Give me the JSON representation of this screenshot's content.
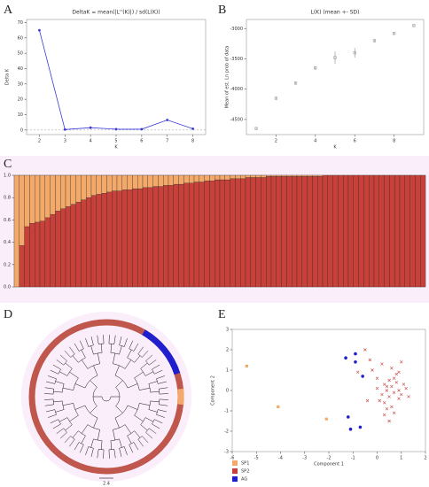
{
  "chart_data": [
    {
      "panel": "A",
      "type": "line",
      "title": "DeltaK = mean(|L''(K)|) / sd(L(K))",
      "x_label": "K",
      "y_label": "Delta K",
      "x": [
        2,
        3,
        4,
        5,
        6,
        7,
        8
      ],
      "values": [
        65,
        0.3,
        1.5,
        0.5,
        0.5,
        6.5,
        0.8
      ],
      "color": "#3b3bd6",
      "xlim": [
        1.5,
        8.5
      ],
      "xticks": [
        2,
        3,
        4,
        5,
        6,
        7,
        8
      ],
      "ylim": [
        -3,
        72
      ],
      "yticks": [
        0,
        10,
        20,
        30,
        40,
        50,
        60,
        70
      ]
    },
    {
      "panel": "B",
      "type": "errorpoints",
      "title": "L(K) (mean +- SD)",
      "x_label": "K",
      "y_label": "Mean of est. Ln prob of data",
      "x": [
        1,
        2,
        3,
        4,
        5,
        6,
        7,
        8,
        9
      ],
      "values": [
        -4650,
        -4150,
        -3900,
        -3650,
        -3480,
        -3400,
        -3200,
        -3080,
        -2950
      ],
      "errors": [
        15,
        15,
        15,
        30,
        100,
        80,
        15,
        15,
        15
      ],
      "color": "#888888",
      "xlim": [
        0.5,
        9.5
      ],
      "xticks": [
        2,
        4,
        6,
        8
      ],
      "ylim": [
        -4750,
        -2850
      ],
      "yticks": [
        -4500,
        -4000,
        -3500,
        -3000
      ]
    },
    {
      "panel": "C",
      "type": "stacked_bar",
      "ylim": [
        0,
        1
      ],
      "yticks": [
        {
          "value": 0,
          "label": "0.0"
        },
        0.2,
        0.4,
        0.6,
        0.8,
        {
          "value": 1,
          "label": "1.0"
        }
      ],
      "series": [
        {
          "color": "#c8403a",
          "values": [
            0,
            0.37,
            0.54,
            0.57,
            0.58,
            0.59,
            0.62,
            0.65,
            0.68,
            0.7,
            0.72,
            0.74,
            0.76,
            0.78,
            0.8,
            0.82,
            0.83,
            0.84,
            0.85,
            0.86,
            0.86,
            0.87,
            0.87,
            0.88,
            0.88,
            0.89,
            0.89,
            0.9,
            0.9,
            0.91,
            0.91,
            0.92,
            0.92,
            0.93,
            0.93,
            0.94,
            0.94,
            0.95,
            0.95,
            0.96,
            0.96,
            0.96,
            0.97,
            0.97,
            0.97,
            0.98,
            0.98,
            0.98,
            0.98,
            0.99,
            0.99,
            0.99,
            0.99,
            0.99,
            0.99,
            0.99,
            0.99,
            0.99,
            0.99,
            0.99,
            1,
            1,
            1,
            1,
            1,
            1,
            1,
            1,
            1,
            1,
            1,
            1,
            1,
            1,
            1,
            1,
            1,
            1,
            1,
            1
          ]
        },
        {
          "color": "#f2a96a",
          "values": [
            1,
            0.63,
            0.46,
            0.43,
            0.42,
            0.41,
            0.38,
            0.35,
            0.32,
            0.3,
            0.28,
            0.26,
            0.24,
            0.22,
            0.2,
            0.18,
            0.17,
            0.16,
            0.15,
            0.14,
            0.14,
            0.13,
            0.13,
            0.12,
            0.12,
            0.11,
            0.11,
            0.1,
            0.1,
            0.09,
            0.09,
            0.08,
            0.08,
            0.07,
            0.07,
            0.06,
            0.06,
            0.05,
            0.05,
            0.04,
            0.04,
            0.04,
            0.03,
            0.03,
            0.03,
            0.02,
            0.02,
            0.02,
            0.02,
            0.01,
            0.01,
            0.01,
            0.01,
            0.01,
            0.01,
            0.01,
            0.01,
            0.01,
            0.01,
            0.01,
            0,
            0,
            0,
            0,
            0,
            0,
            0,
            0,
            0,
            0,
            0,
            0,
            0,
            0,
            0,
            0,
            0,
            0,
            0,
            0
          ]
        }
      ]
    },
    {
      "panel": "D",
      "type": "tree",
      "scale_label": "2.4"
    },
    {
      "panel": "E",
      "type": "scatter",
      "x_label": "Component 1",
      "y_label": "Component 2",
      "xlim": [
        -6,
        2
      ],
      "xticks": [
        -6,
        -5,
        -4,
        -3,
        -2,
        -1,
        0,
        1,
        2
      ],
      "ylim": [
        -3,
        3
      ],
      "yticks": [
        -3,
        -2,
        -1,
        0,
        1,
        2,
        3
      ],
      "series": [
        {
          "name": "SP1",
          "color": "#f2a96a",
          "x": [
            -5.4,
            -4.1,
            -2.1
          ],
          "values": [
            1.2,
            -0.8,
            -1.4
          ]
        },
        {
          "name": "SP2",
          "color": "#c8403a",
          "x": [
            0.0,
            0.2,
            0.3,
            0.4,
            0.5,
            0.6,
            0.7,
            0.8,
            0.9,
            1.0,
            1.1,
            1.2,
            0.1,
            0.3,
            0.5,
            0.7,
            0.9,
            0.4,
            0.6,
            0.8,
            -0.3,
            -0.5,
            -0.2,
            0.2,
            0.6,
            1.0,
            0.3,
            0.5,
            0.7,
            -0.8,
            -0.4,
            0.0,
            1.3,
            0.9,
            0.4
          ],
          "values": [
            0.1,
            -0.2,
            0.3,
            0.0,
            -0.3,
            0.2,
            -0.1,
            0.4,
            0.0,
            -0.2,
            0.3,
            0.1,
            -0.5,
            -0.6,
            0.5,
            0.6,
            -0.4,
            -0.9,
            -0.8,
            0.8,
            1.5,
            2.0,
            1.0,
            1.3,
            1.1,
            1.4,
            -1.2,
            -1.5,
            -1.1,
            0.9,
            -0.5,
            0.6,
            -0.3,
            0.9,
            0.2
          ]
        },
        {
          "name": "AG",
          "color": "#1f1fd0",
          "x": [
            -1.3,
            -0.9,
            -0.9,
            -0.6,
            -1.2,
            -1.1,
            -0.7
          ],
          "values": [
            1.6,
            1.8,
            1.4,
            0.7,
            -1.3,
            -1.9,
            -1.8
          ]
        }
      ]
    }
  ]
}
